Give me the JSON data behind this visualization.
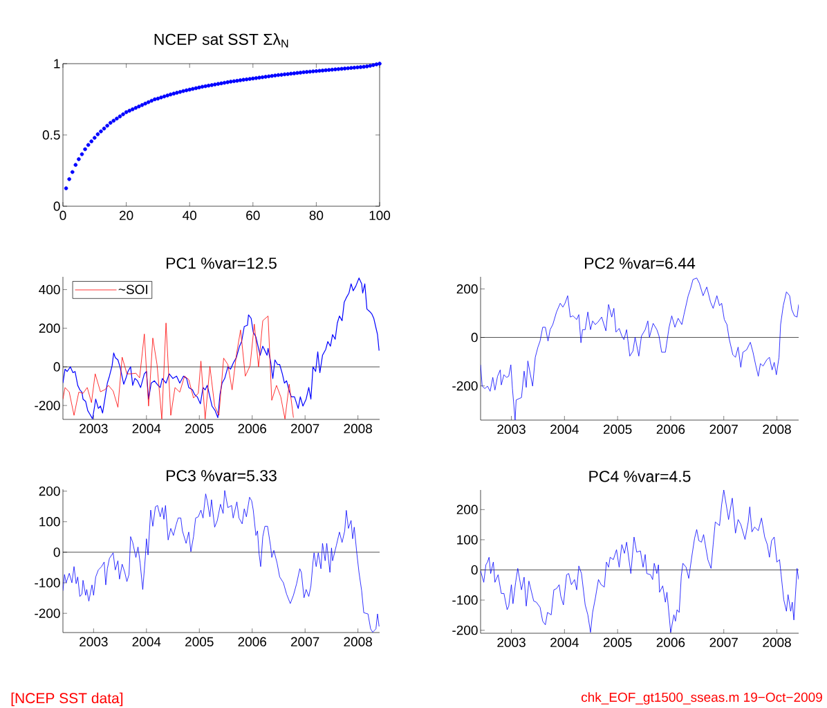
{
  "chart_data": [
    {
      "type": "scatter",
      "title": "NCEP sat SST Σλ$_{N}$",
      "marker": "circle",
      "color": "#0000ff",
      "x": [
        1,
        2,
        3,
        4,
        5,
        6,
        7,
        8,
        9,
        10,
        11,
        12,
        13,
        14,
        15,
        16,
        17,
        18,
        19,
        20,
        21,
        22,
        23,
        24,
        25,
        26,
        27,
        28,
        29,
        30,
        31,
        32,
        33,
        34,
        35,
        36,
        37,
        38,
        39,
        40,
        41,
        42,
        43,
        44,
        45,
        46,
        47,
        48,
        49,
        50,
        51,
        52,
        53,
        54,
        55,
        56,
        57,
        58,
        59,
        60,
        61,
        62,
        63,
        64,
        65,
        66,
        67,
        68,
        69,
        70,
        71,
        72,
        73,
        74,
        75,
        76,
        77,
        78,
        79,
        80,
        81,
        82,
        83,
        84,
        85,
        86,
        87,
        88,
        89,
        90,
        91,
        92,
        93,
        94,
        95,
        96,
        97,
        98,
        99,
        100
      ],
      "values": [
        0.126,
        0.19,
        0.24,
        0.29,
        0.33,
        0.365,
        0.4,
        0.43,
        0.455,
        0.48,
        0.505,
        0.525,
        0.545,
        0.565,
        0.585,
        0.6,
        0.615,
        0.63,
        0.645,
        0.66,
        0.67,
        0.68,
        0.69,
        0.7,
        0.71,
        0.72,
        0.73,
        0.74,
        0.75,
        0.755,
        0.763,
        0.77,
        0.777,
        0.784,
        0.79,
        0.796,
        0.802,
        0.808,
        0.813,
        0.818,
        0.823,
        0.828,
        0.833,
        0.838,
        0.842,
        0.846,
        0.85,
        0.854,
        0.858,
        0.862,
        0.866,
        0.87,
        0.874,
        0.877,
        0.88,
        0.884,
        0.887,
        0.89,
        0.893,
        0.896,
        0.899,
        0.902,
        0.905,
        0.908,
        0.911,
        0.914,
        0.917,
        0.92,
        0.922,
        0.925,
        0.927,
        0.93,
        0.932,
        0.935,
        0.937,
        0.94,
        0.942,
        0.944,
        0.946,
        0.948,
        0.95,
        0.952,
        0.954,
        0.956,
        0.958,
        0.96,
        0.962,
        0.964,
        0.966,
        0.968,
        0.97,
        0.972,
        0.974,
        0.976,
        0.978,
        0.981,
        0.985,
        0.99,
        0.995,
        1.0
      ],
      "xlim": [
        0,
        100
      ],
      "ylim": [
        0,
        1
      ],
      "xticks": [
        0,
        20,
        40,
        60,
        80,
        100
      ],
      "yticks": [
        0,
        0.5,
        1
      ],
      "annotations": [
        "[NCEP SST data]",
        "chk_EOF_gt1500_sseas.m   19−Oct−2009"
      ]
    },
    {
      "type": "line",
      "title": "PC1  %var=12.5",
      "legend": "top left",
      "xlim": [
        2002.42,
        2008.41
      ],
      "ylim": [
        -272,
        466
      ],
      "xticks": [
        2003,
        2004,
        2005,
        2006,
        2007,
        2008
      ],
      "yticks": [
        -200,
        0,
        200,
        400
      ],
      "ref_lines": [
        {
          "axis": "y",
          "value": 0,
          "color": "#000000"
        }
      ],
      "series": [
        {
          "color": "#0000ff",
          "x": [
            2002.42,
            2002.46,
            2002.5,
            2002.56,
            2002.61,
            2002.65,
            2002.7,
            2002.74,
            2002.78,
            2002.8,
            2002.85,
            2002.89,
            2002.93,
            2002.98,
            2003.02,
            2003.04,
            2003.09,
            2003.13,
            2003.17,
            2003.22,
            2003.26,
            2003.3,
            2003.35,
            2003.38,
            2003.41,
            2003.46,
            2003.5,
            2003.57,
            2003.61,
            2003.65,
            2003.7,
            2003.74,
            2003.78,
            2003.83,
            2003.89,
            2003.96,
            2004.0,
            2004.04,
            2004.09,
            2004.15,
            2004.22,
            2004.26,
            2004.3,
            2004.37,
            2004.43,
            2004.5,
            2004.57,
            2004.63,
            2004.7,
            2004.76,
            2004.8,
            2004.87,
            2004.91,
            2004.96,
            2005.02,
            2005.07,
            2005.11,
            2005.15,
            2005.2,
            2005.24,
            2005.3,
            2005.35,
            2005.39,
            2005.43,
            2005.48,
            2005.54,
            2005.59,
            2005.65,
            2005.7,
            2005.76,
            2005.8,
            2005.85,
            2005.91,
            2005.93,
            2005.98,
            2006.02,
            2006.07,
            2006.11,
            2006.15,
            2006.2,
            2006.24,
            2006.28,
            2006.3,
            2006.35,
            2006.39,
            2006.43,
            2006.48,
            2006.52,
            2006.57,
            2006.61,
            2006.65,
            2006.7,
            2006.74,
            2006.8,
            2006.87,
            2006.91,
            2006.96,
            2007.02,
            2007.07,
            2007.11,
            2007.15,
            2007.2,
            2007.24,
            2007.28,
            2007.33,
            2007.39,
            2007.43,
            2007.48,
            2007.52,
            2007.57,
            2007.61,
            2007.65,
            2007.7,
            2007.74,
            2007.78,
            2007.83,
            2007.87,
            2007.91,
            2007.96,
            2008.02,
            2008.07,
            2008.09,
            2008.13,
            2008.17,
            2008.22,
            2008.26,
            2008.3,
            2008.35,
            2008.37,
            2008.4
          ],
          "values": [
            -84,
            -12,
            -24,
            0,
            -30,
            -24,
            -96,
            -119,
            -131,
            -167,
            -179,
            -227,
            -245,
            -269,
            -203,
            -167,
            -215,
            -203,
            -239,
            -155,
            -84,
            -48,
            6,
            72,
            48,
            36,
            0,
            -90,
            -60,
            -24,
            0,
            -96,
            -60,
            -72,
            -107,
            -36,
            -24,
            -167,
            -84,
            -72,
            -96,
            -107,
            -60,
            -84,
            -36,
            -60,
            -48,
            -84,
            -48,
            -60,
            -107,
            -119,
            -143,
            -155,
            -191,
            -107,
            -119,
            -96,
            -155,
            -203,
            -227,
            -263,
            -143,
            -84,
            -60,
            0,
            -12,
            24,
            48,
            107,
            131,
            209,
            215,
            269,
            251,
            179,
            155,
            107,
            60,
            107,
            84,
            60,
            96,
            24,
            -60,
            36,
            12,
            12,
            -36,
            -84,
            -72,
            -125,
            -155,
            -155,
            -215,
            -155,
            -203,
            -167,
            -107,
            -167,
            0,
            -24,
            78,
            -30,
            60,
            90,
            131,
            107,
            167,
            143,
            227,
            263,
            239,
            334,
            358,
            382,
            430,
            394,
            418,
            460,
            430,
            382,
            430,
            299,
            287,
            275,
            251,
            191,
            167,
            84
          ]
        },
        {
          "name": "~SOI",
          "color": "#ff0000",
          "x": [
            2002.42,
            2002.46,
            2002.54,
            2002.63,
            2002.72,
            2002.8,
            2002.88,
            2002.96,
            2003.03,
            2003.13,
            2003.22,
            2003.28,
            2003.37,
            2003.46,
            2003.54,
            2003.63,
            2003.7,
            2003.8,
            2003.87,
            2003.96,
            2004.04,
            2004.12,
            2004.2,
            2004.29,
            2004.37,
            2004.46,
            2004.54,
            2004.63,
            2004.72,
            2004.8,
            2004.89,
            2004.98,
            2005.03,
            2005.11,
            2005.2,
            2005.29,
            2005.37,
            2005.46,
            2005.54,
            2005.62,
            2005.7,
            2005.78,
            2005.87,
            2005.96,
            2006.04,
            2006.12,
            2006.2,
            2006.3,
            2006.37,
            2006.46,
            2006.54,
            2006.62,
            2006.7,
            2006.78
          ],
          "values": [
            -167,
            -107,
            -131,
            -251,
            -131,
            -137,
            -107,
            -185,
            -36,
            -129,
            -117,
            -96,
            -125,
            -209,
            50,
            -36,
            -36,
            -33,
            -57,
            170,
            -203,
            149,
            12,
            -270,
            227,
            -251,
            -107,
            -131,
            -48,
            -66,
            -161,
            -137,
            30,
            -270,
            2,
            -203,
            -251,
            45,
            12,
            -119,
            60,
            191,
            -48,
            6,
            221,
            0,
            239,
            263,
            -173,
            -96,
            -155,
            -270,
            -90,
            -263
          ]
        }
      ]
    },
    {
      "type": "line",
      "title": "PC2  %var=6.44",
      "xlim": [
        2002.42,
        2008.41
      ],
      "ylim": [
        -341,
        250
      ],
      "xticks": [
        2003,
        2004,
        2005,
        2006,
        2007,
        2008
      ],
      "yticks": [
        -200,
        0,
        200
      ],
      "ref_lines": [
        {
          "axis": "y",
          "value": 0,
          "color": "#000000"
        }
      ],
      "series": [
        {
          "color": "#0000ff",
          "x": [
            2002.42,
            2002.45,
            2002.5,
            2002.55,
            2002.6,
            2002.65,
            2002.69,
            2002.74,
            2002.79,
            2002.81,
            2002.86,
            2002.91,
            2002.95,
            2002.99,
            2003.02,
            2003.07,
            2003.09,
            2003.14,
            2003.19,
            2003.24,
            2003.28,
            2003.31,
            2003.35,
            2003.4,
            2003.45,
            2003.5,
            2003.54,
            2003.59,
            2003.64,
            2003.69,
            2003.73,
            2003.78,
            2003.85,
            2003.92,
            2003.97,
            2004.01,
            2004.06,
            2004.11,
            2004.16,
            2004.23,
            2004.27,
            2004.31,
            2004.34,
            2004.39,
            2004.44,
            2004.49,
            2004.53,
            2004.58,
            2004.63,
            2004.7,
            2004.78,
            2004.83,
            2004.89,
            2004.93,
            2004.97,
            2005.03,
            2005.08,
            2005.12,
            2005.17,
            2005.23,
            2005.29,
            2005.33,
            2005.4,
            2005.45,
            2005.52,
            2005.57,
            2005.6,
            2005.67,
            2005.74,
            2005.78,
            2005.83,
            2005.9,
            2005.97,
            2006.02,
            2006.08,
            2006.14,
            2006.21,
            2006.25,
            2006.33,
            2006.37,
            2006.42,
            2006.49,
            2006.54,
            2006.61,
            2006.68,
            2006.75,
            2006.8,
            2006.87,
            2006.92,
            2006.96,
            2007.01,
            2007.06,
            2007.1,
            2007.17,
            2007.22,
            2007.27,
            2007.32,
            2007.36,
            2007.43,
            2007.5,
            2007.55,
            2007.6,
            2007.65,
            2007.69,
            2007.74,
            2007.81,
            2007.86,
            2007.91,
            2007.95,
            2007.99,
            2008.04,
            2008.07,
            2008.12,
            2008.18,
            2008.24,
            2008.28,
            2008.33,
            2008.38,
            2008.41
          ],
          "values": [
            -113,
            -201,
            -211,
            -201,
            -222,
            -165,
            -217,
            -160,
            -134,
            -196,
            -154,
            -165,
            -160,
            -113,
            -211,
            -341,
            -258,
            -253,
            -248,
            -139,
            -206,
            -97,
            -144,
            -201,
            -82,
            -40,
            -15,
            42,
            42,
            -15,
            32,
            53,
            105,
            141,
            125,
            141,
            172,
            84,
            89,
            74,
            94,
            -22,
            32,
            32,
            105,
            32,
            68,
            53,
            63,
            84,
            27,
            136,
            84,
            120,
            22,
            37,
            6,
            -9,
            32,
            -77,
            -56,
            1,
            -77,
            6,
            32,
            68,
            1,
            58,
            32,
            6,
            -61,
            -61,
            42,
            89,
            42,
            79,
            53,
            94,
            172,
            198,
            239,
            245,
            224,
            172,
            208,
            146,
            120,
            172,
            131,
            141,
            74,
            53,
            -4,
            -71,
            -82,
            -40,
            -123,
            -61,
            -51,
            -20,
            -61,
            -113,
            -160,
            -108,
            -118,
            -92,
            -82,
            -134,
            -103,
            -154,
            -82,
            53,
            131,
            188,
            172,
            115,
            89,
            84,
            136
          ]
        }
      ]
    },
    {
      "type": "line",
      "title": "PC3  %var=5.33",
      "xlim": [
        2002.42,
        2008.41
      ],
      "ylim": [
        -263,
        206
      ],
      "xticks": [
        2003,
        2004,
        2005,
        2006,
        2007,
        2008
      ],
      "yticks": [
        -200,
        -100,
        0,
        100,
        200
      ],
      "ref_lines": [
        {
          "axis": "y",
          "value": 0,
          "color": "#000000"
        }
      ],
      "series": [
        {
          "color": "#0000ff",
          "x": [
            2002.42,
            2002.45,
            2002.48,
            2002.54,
            2002.59,
            2002.63,
            2002.67,
            2002.7,
            2002.74,
            2002.78,
            2002.8,
            2002.85,
            2002.87,
            2002.91,
            2002.97,
            2003.0,
            2003.04,
            2003.09,
            2003.15,
            2003.2,
            2003.23,
            2003.26,
            2003.3,
            2003.37,
            2003.41,
            2003.46,
            2003.49,
            2003.54,
            2003.59,
            2003.63,
            2003.67,
            2003.7,
            2003.74,
            2003.8,
            2003.84,
            2003.88,
            2003.93,
            2003.98,
            2004.0,
            2004.03,
            2004.08,
            2004.12,
            2004.17,
            2004.21,
            2004.26,
            2004.3,
            2004.33,
            2004.36,
            2004.41,
            2004.46,
            2004.51,
            2004.56,
            2004.6,
            2004.65,
            2004.68,
            2004.75,
            2004.8,
            2004.84,
            2004.89,
            2004.93,
            2004.98,
            2005.03,
            2005.07,
            2005.12,
            2005.15,
            2005.2,
            2005.23,
            2005.29,
            2005.34,
            2005.4,
            2005.45,
            2005.48,
            2005.54,
            2005.61,
            2005.64,
            2005.71,
            2005.75,
            2005.81,
            2005.85,
            2005.89,
            2005.95,
            2005.99,
            2006.02,
            2006.07,
            2006.1,
            2006.13,
            2006.16,
            2006.2,
            2006.24,
            2006.29,
            2006.35,
            2006.37,
            2006.41,
            2006.47,
            2006.52,
            2006.59,
            2006.65,
            2006.72,
            2006.78,
            2006.84,
            2006.9,
            2006.93,
            2006.98,
            2007.02,
            2007.07,
            2007.11,
            2007.15,
            2007.17,
            2007.21,
            2007.25,
            2007.3,
            2007.33,
            2007.38,
            2007.41,
            2007.47,
            2007.5,
            2007.52,
            2007.59,
            2007.65,
            2007.7,
            2007.75,
            2007.78,
            2007.82,
            2007.87,
            2007.9,
            2007.93,
            2007.98,
            2008.02,
            2008.07,
            2008.11,
            2008.19,
            2008.24,
            2008.28,
            2008.34,
            2008.37,
            2008.4
          ],
          "values": [
            -126,
            -73,
            -100,
            -69,
            -100,
            -47,
            -103,
            -81,
            -145,
            -137,
            -92,
            -141,
            -122,
            -160,
            -107,
            -141,
            -81,
            -58,
            -47,
            -32,
            -107,
            -54,
            -20,
            -2,
            -58,
            -28,
            -88,
            -39,
            -66,
            -96,
            -73,
            51,
            32,
            -17,
            17,
            -35,
            -122,
            -13,
            44,
            -9,
            138,
            85,
            149,
            153,
            116,
            146,
            108,
            153,
            40,
            78,
            55,
            89,
            112,
            112,
            70,
            29,
            66,
            2,
            51,
            112,
            116,
            138,
            112,
            191,
            168,
            116,
            172,
            82,
            104,
            157,
            127,
            202,
            146,
            153,
            112,
            165,
            112,
            93,
            142,
            116,
            180,
            168,
            138,
            55,
            70,
            -5,
            -47,
            51,
            85,
            85,
            17,
            -17,
            6,
            -35,
            -81,
            -100,
            -137,
            -168,
            -141,
            -103,
            -54,
            -66,
            -149,
            -122,
            -145,
            -111,
            -32,
            -2,
            -47,
            -2,
            -54,
            29,
            -28,
            29,
            -66,
            14,
            -28,
            21,
            66,
            32,
            70,
            137,
            78,
            104,
            44,
            82,
            -5,
            -66,
            -126,
            -198,
            -202,
            -251,
            -262,
            -251,
            -202,
            -243
          ]
        }
      ]
    },
    {
      "type": "line",
      "title": "PC4  %var=4.5",
      "xlim": [
        2002.42,
        2008.41
      ],
      "ylim": [
        -210,
        265
      ],
      "xticks": [
        2003,
        2004,
        2005,
        2006,
        2007,
        2008
      ],
      "yticks": [
        -200,
        -100,
        0,
        100,
        200
      ],
      "ref_lines": [
        {
          "axis": "y",
          "value": 0,
          "color": "#000000"
        }
      ],
      "series": [
        {
          "color": "#0000ff",
          "x": [
            2002.42,
            2002.48,
            2002.52,
            2002.55,
            2002.58,
            2002.61,
            2002.66,
            2002.69,
            2002.75,
            2002.81,
            2002.86,
            2002.92,
            2002.95,
            2003.0,
            2003.03,
            2003.08,
            2003.12,
            2003.19,
            2003.24,
            2003.28,
            2003.33,
            2003.42,
            2003.47,
            2003.54,
            2003.59,
            2003.64,
            2003.68,
            2003.75,
            2003.8,
            2003.85,
            2003.9,
            2003.93,
            2003.98,
            2004.04,
            2004.08,
            2004.13,
            2004.19,
            2004.23,
            2004.27,
            2004.32,
            2004.39,
            2004.44,
            2004.49,
            2004.53,
            2004.58,
            2004.64,
            2004.69,
            2004.75,
            2004.79,
            2004.83,
            2004.86,
            2004.92,
            2004.98,
            2005.03,
            2005.08,
            2005.13,
            2005.17,
            2005.25,
            2005.31,
            2005.36,
            2005.43,
            2005.48,
            2005.52,
            2005.55,
            2005.62,
            2005.66,
            2005.69,
            2005.74,
            2005.77,
            2005.79,
            2005.85,
            2005.9,
            2005.93,
            2006.0,
            2006.06,
            2006.09,
            2006.12,
            2006.16,
            2006.2,
            2006.23,
            2006.29,
            2006.34,
            2006.4,
            2006.45,
            2006.49,
            2006.53,
            2006.58,
            2006.62,
            2006.7,
            2006.76,
            2006.8,
            2006.84,
            2006.92,
            2006.96,
            2007.0,
            2007.06,
            2007.09,
            2007.16,
            2007.22,
            2007.27,
            2007.32,
            2007.4,
            2007.46,
            2007.49,
            2007.53,
            2007.58,
            2007.65,
            2007.71,
            2007.77,
            2007.82,
            2007.86,
            2007.9,
            2007.95,
            2008.0,
            2008.05,
            2008.08,
            2008.13,
            2008.18,
            2008.21,
            2008.26,
            2008.29,
            2008.32,
            2008.38,
            2008.41
          ],
          "values": [
            -3,
            -41,
            17,
            26,
            42,
            -12,
            26,
            -41,
            -16,
            -78,
            -78,
            -132,
            -120,
            -49,
            -112,
            -41,
            5,
            -66,
            -24,
            -120,
            -37,
            -103,
            -107,
            -124,
            -170,
            -182,
            -141,
            -149,
            -66,
            -62,
            -49,
            -87,
            -116,
            -16,
            -12,
            -49,
            -32,
            -66,
            13,
            -12,
            -116,
            -149,
            -207,
            -141,
            -95,
            -32,
            -49,
            -57,
            26,
            9,
            42,
            34,
            67,
            9,
            84,
            55,
            92,
            -12,
            109,
            59,
            63,
            9,
            51,
            -12,
            -16,
            -32,
            22,
            -12,
            17,
            -74,
            -53,
            -107,
            -74,
            -207,
            -149,
            -170,
            -132,
            -141,
            -20,
            22,
            9,
            -28,
            47,
            105,
            134,
            97,
            92,
            117,
            34,
            5,
            84,
            159,
            147,
            217,
            265,
            201,
            167,
            238,
            122,
            167,
            151,
            101,
            159,
            209,
            126,
            142,
            130,
            172,
            109,
            84,
            42,
            97,
            109,
            26,
            34,
            -16,
            -99,
            -137,
            -82,
            -137,
            -107,
            -166,
            5,
            -32
          ]
        }
      ]
    }
  ]
}
